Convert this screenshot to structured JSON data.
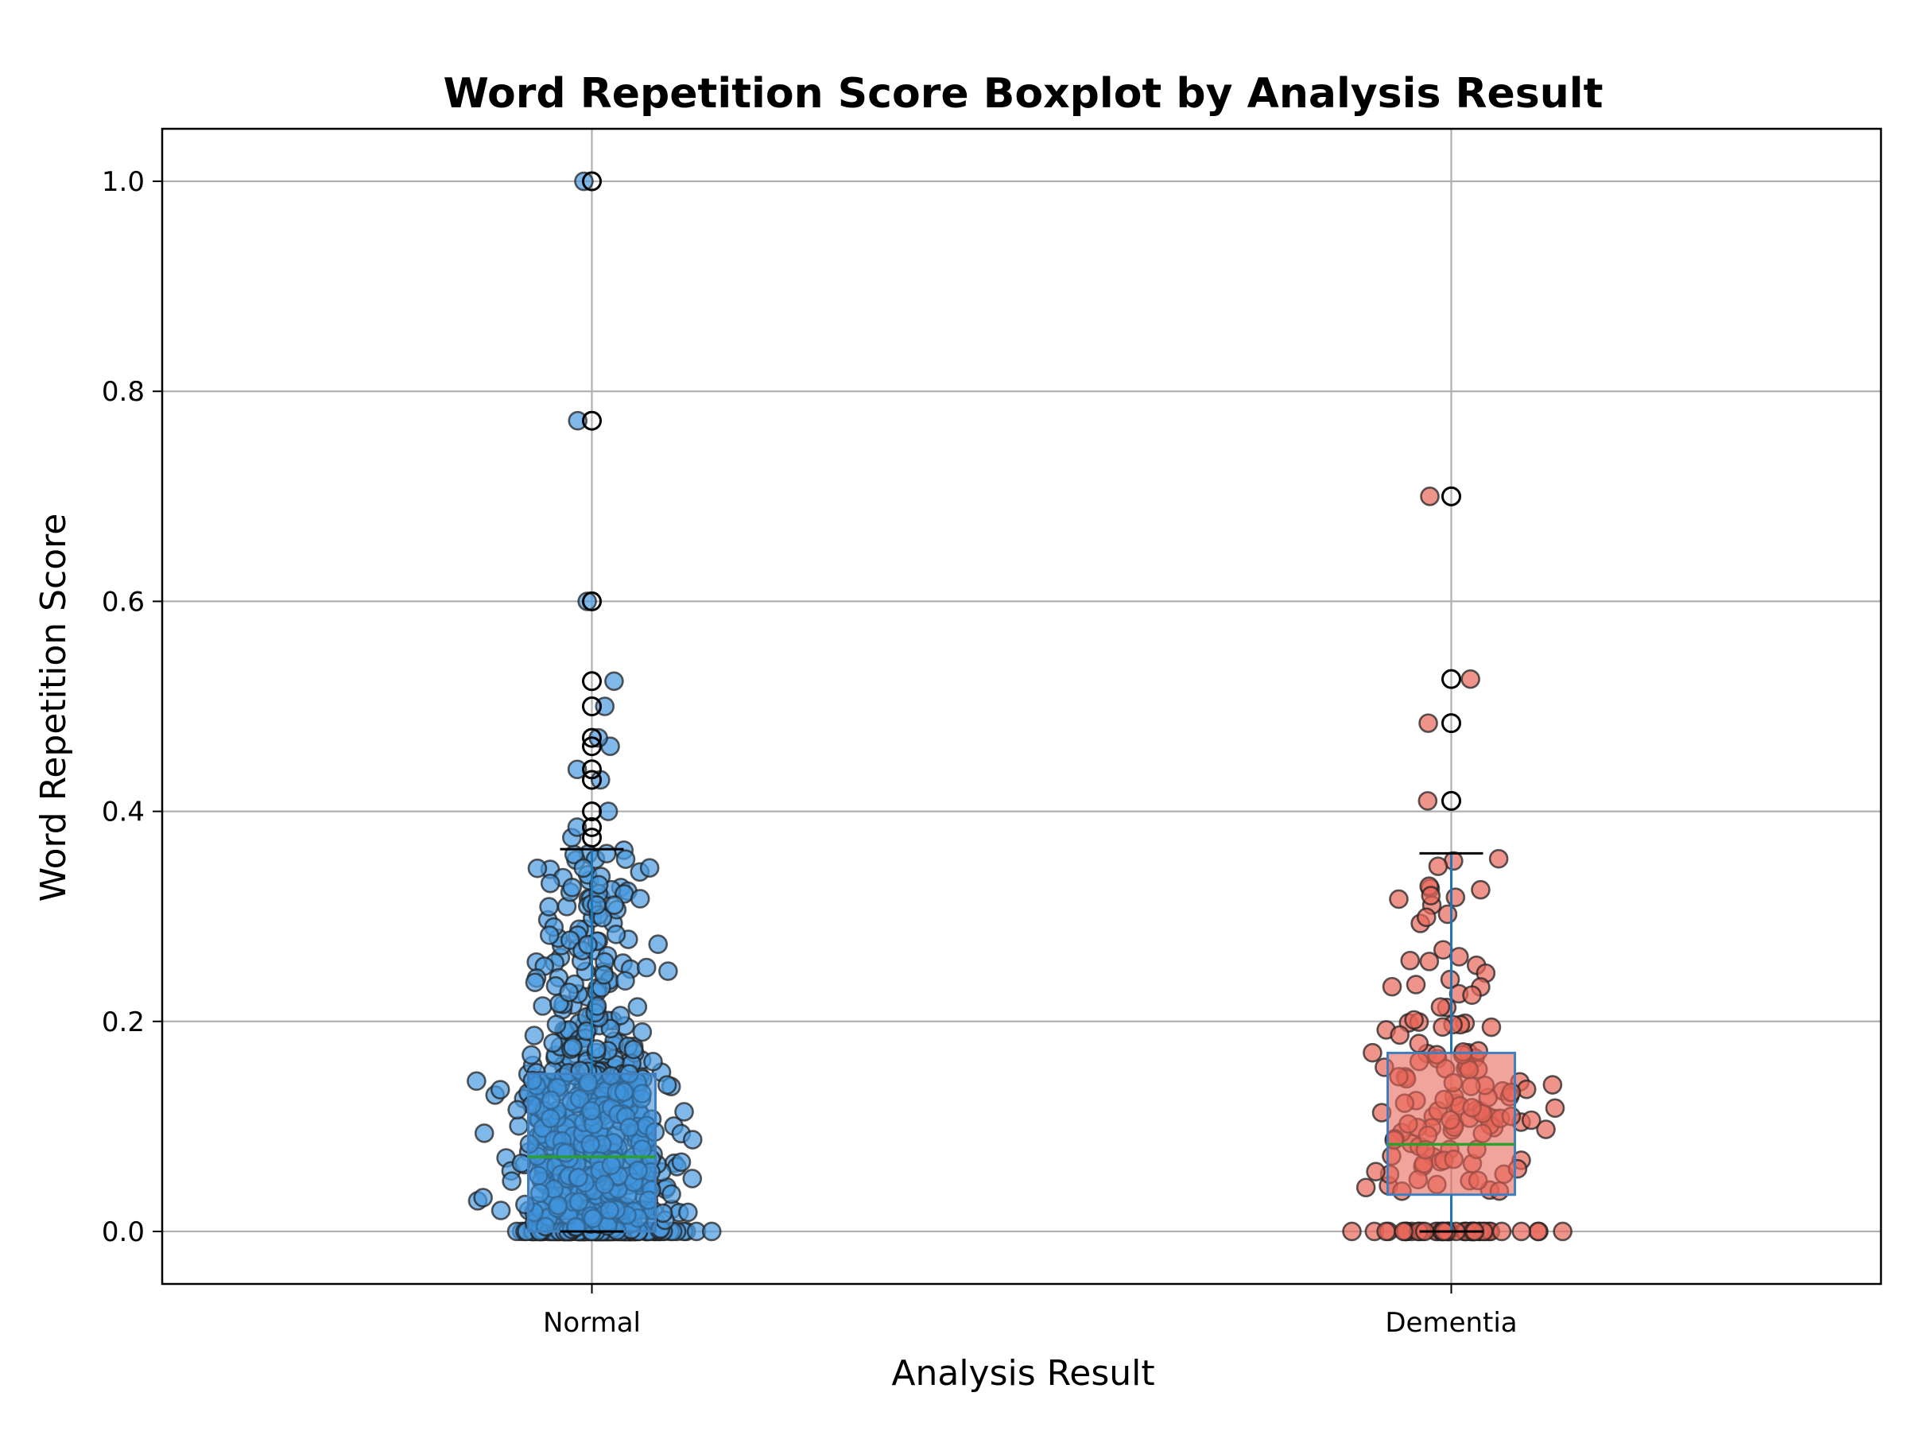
{
  "chart_data": {
    "type": "boxplot",
    "title": "Word Repetition Score Boxplot by Analysis Result",
    "xlabel": "Analysis Result",
    "ylabel": "Word Repetition Score",
    "categories": [
      "Normal",
      "Dementia"
    ],
    "ylim": [
      -0.05,
      1.05
    ],
    "yticks": [
      0.0,
      0.2,
      0.4,
      0.6,
      0.8,
      1.0
    ],
    "ytick_labels": [
      "0.0",
      "0.2",
      "0.4",
      "0.6",
      "0.8",
      "1.0"
    ],
    "grid": true,
    "boxes": [
      {
        "name": "Normal",
        "q1": 0.0,
        "median": 0.071,
        "q3": 0.15,
        "whisker_low": 0.0,
        "whisker_high": 0.364,
        "outliers": [
          0.375,
          0.385,
          0.4,
          0.43,
          0.44,
          0.462,
          0.47,
          0.5,
          0.524,
          0.6,
          0.772,
          1.0
        ],
        "box_color": "#3a8fd9",
        "point_color": "#4a9be0"
      },
      {
        "name": "Dementia",
        "q1": 0.035,
        "median": 0.083,
        "q3": 0.17,
        "whisker_low": 0.0,
        "whisker_high": 0.36,
        "outliers": [
          0.41,
          0.484,
          0.526,
          0.7
        ],
        "box_color": "#e8675a",
        "point_color": "#e8675a"
      }
    ],
    "median_color": "#2ca02c",
    "whisker_color": "#1f77b4"
  }
}
